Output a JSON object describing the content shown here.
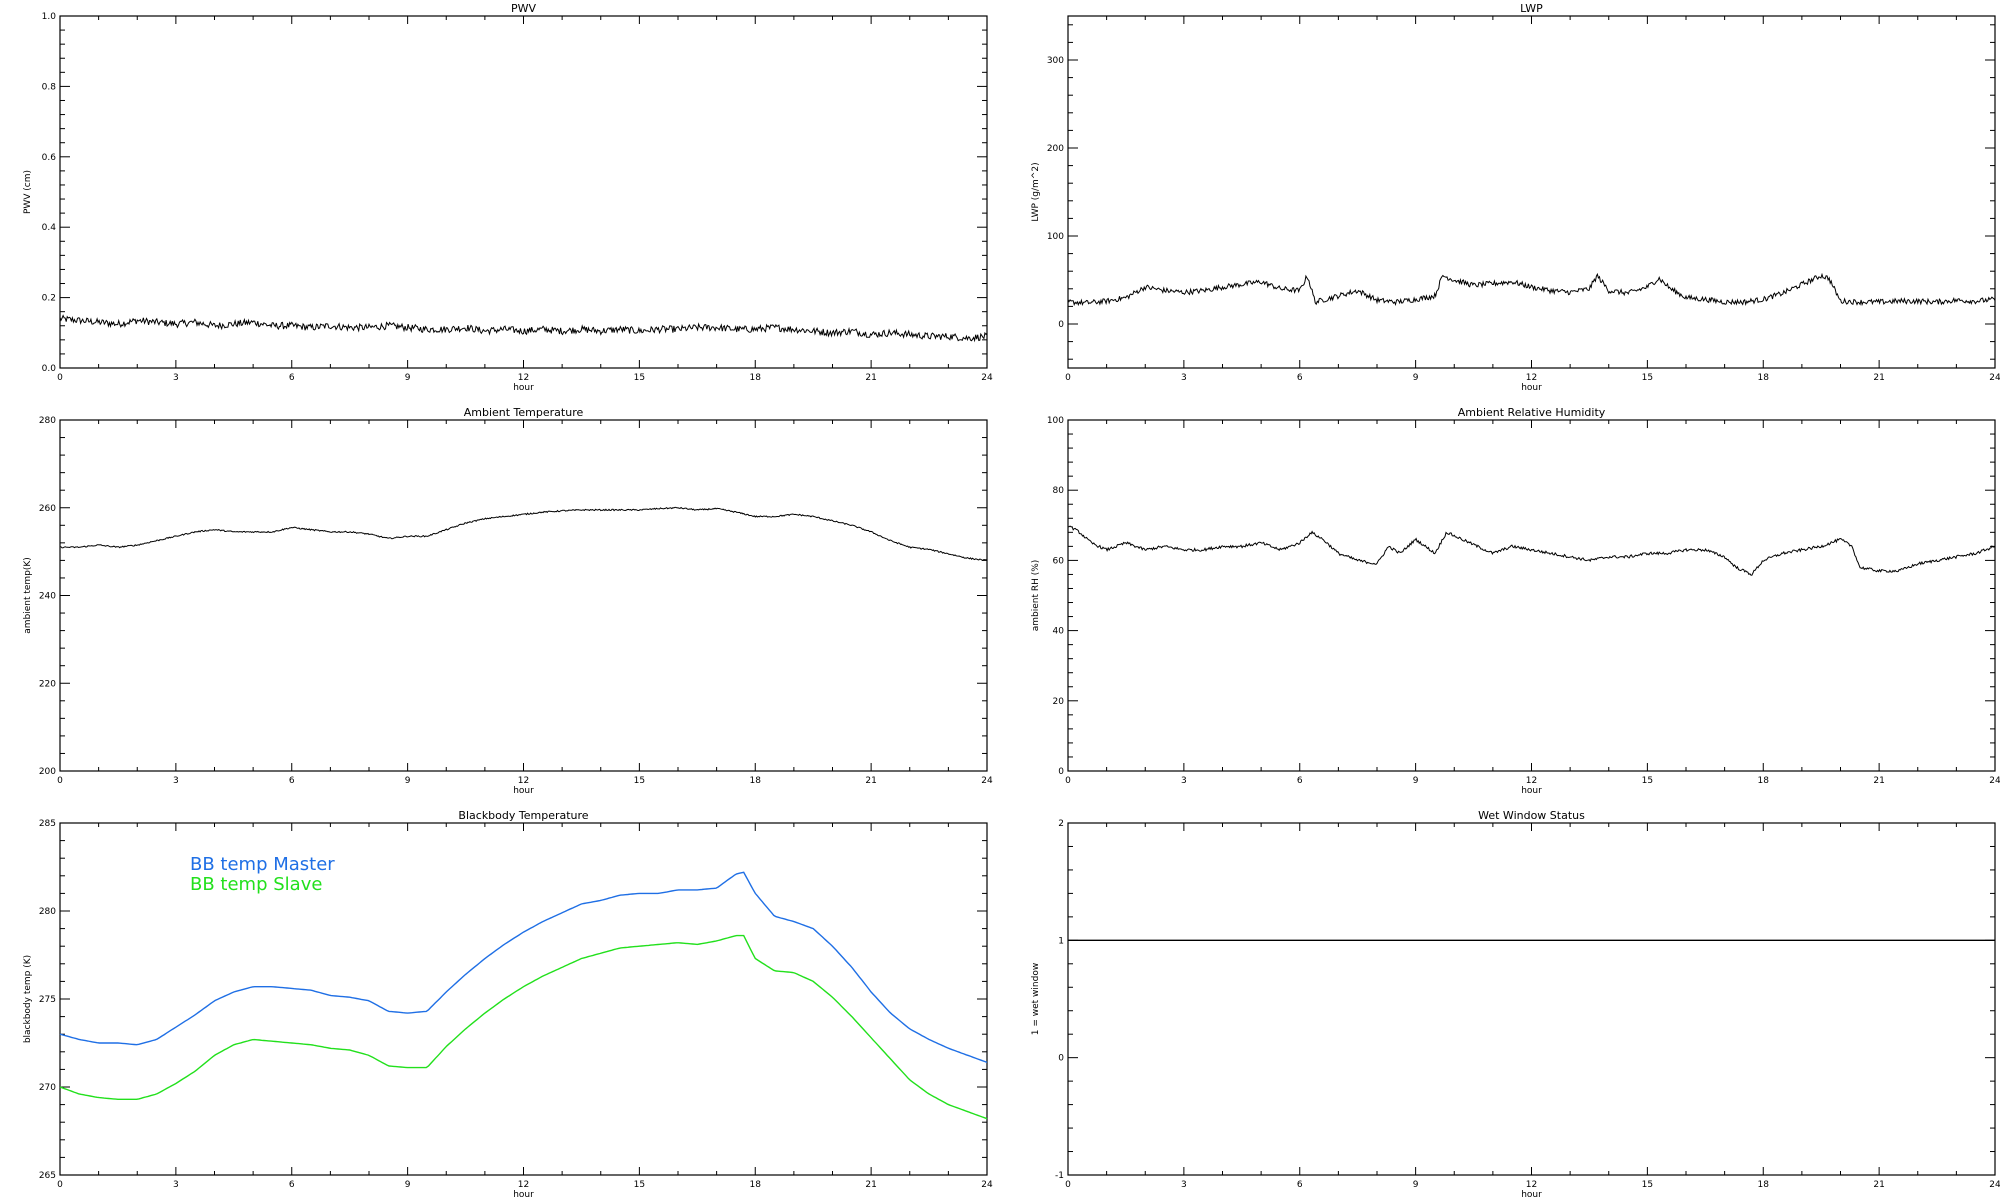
{
  "chart_data": [
    {
      "id": "pwv",
      "type": "line",
      "title": "PWV",
      "xlabel": "hour",
      "ylabel": "PWV (cm)",
      "xlim": [
        0,
        24
      ],
      "ylim": [
        0,
        1.0
      ],
      "xticks": [
        0,
        3,
        6,
        9,
        12,
        15,
        18,
        21,
        24
      ],
      "yticks": [
        0.0,
        0.2,
        0.4,
        0.6,
        0.8,
        1.0
      ],
      "ytick_labels": [
        "0.0",
        "0.2",
        "0.4",
        "0.6",
        "0.8",
        "1.0"
      ],
      "noise": 0.01,
      "series": [
        {
          "color": "#000000",
          "x": [
            0,
            0.5,
            1,
            1.5,
            2,
            2.5,
            3,
            3.5,
            4,
            4.5,
            5,
            5.5,
            6,
            6.5,
            7,
            7.5,
            8,
            8.5,
            9,
            9.5,
            10,
            10.5,
            11,
            11.5,
            12,
            12.5,
            13,
            13.5,
            14,
            14.5,
            15,
            15.5,
            16,
            16.5,
            17,
            17.5,
            18,
            18.5,
            19,
            19.5,
            20,
            20.5,
            21,
            21.5,
            22,
            22.5,
            23,
            23.5,
            24
          ],
          "y": [
            0.14,
            0.135,
            0.13,
            0.125,
            0.135,
            0.13,
            0.125,
            0.13,
            0.12,
            0.125,
            0.13,
            0.12,
            0.12,
            0.115,
            0.12,
            0.115,
            0.115,
            0.12,
            0.115,
            0.11,
            0.11,
            0.115,
            0.105,
            0.11,
            0.105,
            0.11,
            0.105,
            0.11,
            0.105,
            0.11,
            0.105,
            0.11,
            0.11,
            0.115,
            0.115,
            0.11,
            0.11,
            0.115,
            0.11,
            0.105,
            0.1,
            0.105,
            0.095,
            0.1,
            0.095,
            0.09,
            0.09,
            0.085,
            0.09
          ]
        }
      ]
    },
    {
      "id": "lwp",
      "type": "line",
      "title": "LWP",
      "xlabel": "hour",
      "ylabel": "LWP (g/m^2)",
      "xlim": [
        0,
        24
      ],
      "ylim": [
        -50,
        350
      ],
      "xticks": [
        0,
        3,
        6,
        9,
        12,
        15,
        18,
        21,
        24
      ],
      "yticks": [
        0,
        100,
        200,
        300
      ],
      "ytick_labels": [
        "0",
        "100",
        "200",
        "300"
      ],
      "noise": 3,
      "series": [
        {
          "color": "#000000",
          "x": [
            0,
            0.5,
            1,
            1.5,
            2,
            2.5,
            3,
            3.5,
            4,
            4.5,
            5,
            5.5,
            6,
            6.2,
            6.4,
            7,
            7.5,
            8,
            8.5,
            9,
            9.5,
            9.7,
            10,
            10.5,
            11,
            11.5,
            12,
            12.5,
            13,
            13.5,
            13.7,
            14,
            14.5,
            15,
            15.3,
            15.6,
            16,
            16.5,
            17,
            17.5,
            18,
            18.5,
            19,
            19.5,
            19.7,
            20,
            20.5,
            21,
            21.5,
            22,
            22.5,
            23,
            23.5,
            24
          ],
          "y": [
            25,
            24,
            26,
            30,
            42,
            38,
            36,
            38,
            42,
            45,
            48,
            40,
            38,
            55,
            25,
            32,
            38,
            27,
            25,
            28,
            32,
            55,
            50,
            44,
            46,
            48,
            42,
            38,
            36,
            40,
            55,
            38,
            35,
            42,
            52,
            40,
            30,
            28,
            25,
            25,
            28,
            35,
            45,
            55,
            52,
            26,
            25,
            25,
            26,
            26,
            25,
            27,
            26,
            28
          ]
        }
      ]
    },
    {
      "id": "ambient-temperature",
      "type": "line",
      "title": "Ambient Temperature",
      "xlabel": "hour",
      "ylabel": "ambient temp(K)",
      "xlim": [
        0,
        24
      ],
      "ylim": [
        200,
        280
      ],
      "xticks": [
        0,
        3,
        6,
        9,
        12,
        15,
        18,
        21,
        24
      ],
      "yticks": [
        200,
        220,
        240,
        260,
        280
      ],
      "ytick_labels": [
        "200",
        "220",
        "240",
        "260",
        "280"
      ],
      "noise": 0.15,
      "series": [
        {
          "color": "#000000",
          "x": [
            0,
            0.5,
            1,
            1.5,
            2,
            2.5,
            3,
            3.5,
            4,
            4.5,
            5,
            5.5,
            6,
            6.5,
            7,
            7.5,
            8,
            8.5,
            9,
            9.5,
            10,
            10.5,
            11,
            11.5,
            12,
            12.5,
            13,
            13.5,
            14,
            14.5,
            15,
            15.5,
            16,
            16.5,
            17,
            17.5,
            18,
            18.5,
            19,
            19.5,
            20,
            20.5,
            21,
            21.5,
            22,
            22.5,
            23,
            23.5,
            24
          ],
          "y": [
            251,
            251,
            251.5,
            251,
            251.5,
            252.5,
            253.5,
            254.5,
            255,
            254.5,
            254.5,
            254.5,
            255.5,
            255,
            254.5,
            254.5,
            254,
            253,
            253.5,
            253.5,
            255,
            256.5,
            257.5,
            258,
            258.5,
            259,
            259.3,
            259.5,
            259.5,
            259.5,
            259.5,
            259.8,
            260,
            259.5,
            259.8,
            259,
            258,
            258,
            258.5,
            258,
            257,
            256,
            254.5,
            252.5,
            251,
            250.5,
            249.5,
            248.5,
            248
          ]
        }
      ]
    },
    {
      "id": "ambient-relative-humidity",
      "type": "line",
      "title": "Ambient Relative Humidity",
      "xlabel": "hour",
      "ylabel": "ambient RH (%)",
      "xlim": [
        0,
        24
      ],
      "ylim": [
        0,
        100
      ],
      "xticks": [
        0,
        3,
        6,
        9,
        12,
        15,
        18,
        21,
        24
      ],
      "yticks": [
        0,
        20,
        40,
        60,
        80,
        100
      ],
      "ytick_labels": [
        "0",
        "20",
        "40",
        "60",
        "80",
        "100"
      ],
      "noise": 0.4,
      "series": [
        {
          "color": "#000000",
          "x": [
            0,
            0.3,
            0.6,
            1,
            1.5,
            2,
            2.5,
            3,
            3.5,
            4,
            4.5,
            5,
            5.5,
            6,
            6.3,
            6.6,
            7,
            7.5,
            8,
            8.3,
            8.6,
            9,
            9.5,
            9.8,
            10.2,
            10.6,
            11,
            11.5,
            12,
            12.5,
            13,
            13.5,
            14,
            14.5,
            15,
            15.5,
            16,
            16.5,
            17,
            17.3,
            17.7,
            18,
            18.5,
            19,
            19.5,
            20,
            20.3,
            20.5,
            21,
            21.5,
            22,
            22.5,
            23,
            23.5,
            24
          ],
          "y": [
            70,
            68,
            65,
            63,
            65,
            63,
            64,
            63,
            63,
            64,
            64,
            65,
            63,
            65,
            68,
            66,
            62,
            60,
            59,
            64,
            62,
            66,
            62,
            68,
            66,
            64,
            62,
            64,
            63,
            62,
            61,
            60,
            61,
            61,
            62,
            62,
            63,
            63,
            61,
            58,
            56,
            60,
            62,
            63,
            64,
            66,
            64,
            58,
            57,
            57,
            59,
            60,
            61,
            62,
            64
          ]
        }
      ]
    },
    {
      "id": "blackbody-temperature",
      "type": "line",
      "title": "Blackbody Temperature",
      "xlabel": "hour",
      "ylabel": "blackbody temp (K)",
      "xlim": [
        0,
        24
      ],
      "ylim": [
        265,
        285
      ],
      "xticks": [
        0,
        3,
        6,
        9,
        12,
        15,
        18,
        21,
        24
      ],
      "yticks": [
        265,
        270,
        275,
        280,
        285
      ],
      "ytick_labels": [
        "265",
        "270",
        "275",
        "280",
        "285"
      ],
      "noise": 0,
      "legend": [
        "BB temp Master",
        "BB temp Slave"
      ],
      "series": [
        {
          "name": "BB temp Master",
          "color": "#1f6fe5",
          "x": [
            0,
            0.5,
            1,
            1.5,
            2,
            2.5,
            3,
            3.5,
            4,
            4.5,
            5,
            5.5,
            6,
            6.5,
            7,
            7.5,
            8,
            8.5,
            9,
            9.5,
            10,
            10.5,
            11,
            11.5,
            12,
            12.5,
            13,
            13.5,
            14,
            14.5,
            15,
            15.5,
            16,
            16.5,
            17,
            17.5,
            17.7,
            18,
            18.5,
            19,
            19.5,
            20,
            20.5,
            21,
            21.5,
            22,
            22.5,
            23,
            23.5,
            24
          ],
          "y": [
            273,
            272.7,
            272.5,
            272.5,
            272.4,
            272.7,
            273.4,
            274.1,
            274.9,
            275.4,
            275.7,
            275.7,
            275.6,
            275.5,
            275.2,
            275.1,
            274.9,
            274.3,
            274.2,
            274.3,
            275.4,
            276.4,
            277.3,
            278.1,
            278.8,
            279.4,
            279.9,
            280.4,
            280.6,
            280.9,
            281,
            281,
            281.2,
            281.2,
            281.3,
            282.1,
            282.2,
            281,
            279.7,
            279.4,
            279,
            278,
            276.8,
            275.4,
            274.2,
            273.3,
            272.7,
            272.2,
            271.8,
            271.4
          ]
        },
        {
          "name": "BB temp Slave",
          "color": "#22e01c",
          "x": [
            0,
            0.5,
            1,
            1.5,
            2,
            2.5,
            3,
            3.5,
            4,
            4.5,
            5,
            5.5,
            6,
            6.5,
            7,
            7.5,
            8,
            8.5,
            9,
            9.5,
            10,
            10.5,
            11,
            11.5,
            12,
            12.5,
            13,
            13.5,
            14,
            14.5,
            15,
            15.5,
            16,
            16.5,
            17,
            17.5,
            17.7,
            18,
            18.5,
            19,
            19.5,
            20,
            20.5,
            21,
            21.5,
            22,
            22.5,
            23,
            23.5,
            24
          ],
          "y": [
            270,
            269.6,
            269.4,
            269.3,
            269.3,
            269.6,
            270.2,
            270.9,
            271.8,
            272.4,
            272.7,
            272.6,
            272.5,
            272.4,
            272.2,
            272.1,
            271.8,
            271.2,
            271.1,
            271.1,
            272.3,
            273.3,
            274.2,
            275,
            275.7,
            276.3,
            276.8,
            277.3,
            277.6,
            277.9,
            278,
            278.1,
            278.2,
            278.1,
            278.3,
            278.6,
            278.6,
            277.3,
            276.6,
            276.5,
            276,
            275.1,
            274,
            272.8,
            271.6,
            270.4,
            269.6,
            269,
            268.6,
            268.2
          ]
        }
      ]
    },
    {
      "id": "wet-window-status",
      "type": "line",
      "title": "Wet Window Status",
      "xlabel": "hour",
      "ylabel": "1 = wet window",
      "xlim": [
        0,
        24
      ],
      "ylim": [
        -1,
        2
      ],
      "xticks": [
        0,
        3,
        6,
        9,
        12,
        15,
        18,
        21,
        24
      ],
      "yticks": [
        -1,
        0,
        1,
        2
      ],
      "ytick_labels": [
        "-1",
        "0",
        "1",
        "2"
      ],
      "noise": 0,
      "series": [
        {
          "color": "#000000",
          "x": [
            0,
            24
          ],
          "y": [
            1,
            1
          ]
        }
      ]
    }
  ]
}
